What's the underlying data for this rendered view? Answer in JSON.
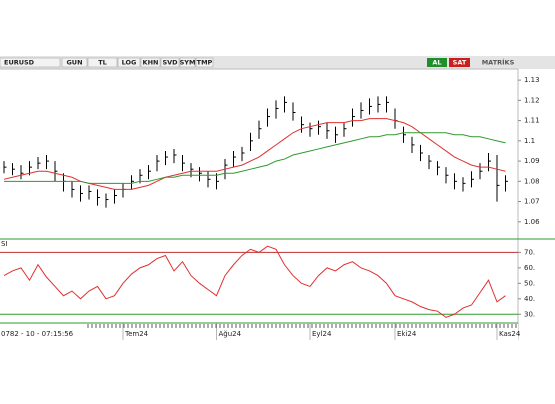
{
  "toolbar": {
    "symbol": "EURUSD",
    "buttons": [
      "GUN",
      "TL",
      "LOG",
      "KHN",
      "SVD",
      "SYM",
      "TMP"
    ],
    "buy": "AL",
    "sell": "SAT",
    "brand": "MATRİKS"
  },
  "timestamp": "0782 - 10 - 07:15:56",
  "chart_data": [
    {
      "type": "ohlc",
      "high": [
        1.09,
        1.089,
        1.088,
        1.09,
        1.092,
        1.093,
        1.09,
        1.084,
        1.08,
        1.078,
        1.078,
        1.076,
        1.074,
        1.076,
        1.079,
        1.083,
        1.086,
        1.088,
        1.093,
        1.095,
        1.096,
        1.093,
        1.089,
        1.087,
        1.085,
        1.084,
        1.091,
        1.095,
        1.097,
        1.104,
        1.11,
        1.116,
        1.12,
        1.122,
        1.119,
        1.112,
        1.109,
        1.11,
        1.109,
        1.107,
        1.109,
        1.116,
        1.119,
        1.121,
        1.122,
        1.122,
        1.116,
        1.107,
        1.102,
        1.098,
        1.093,
        1.09,
        1.087,
        1.084,
        1.082,
        1.085,
        1.089,
        1.094,
        1.093,
        1.083
      ],
      "low": [
        1.084,
        1.083,
        1.081,
        1.083,
        1.086,
        1.086,
        1.08,
        1.075,
        1.072,
        1.07,
        1.071,
        1.068,
        1.067,
        1.069,
        1.072,
        1.076,
        1.079,
        1.081,
        1.085,
        1.088,
        1.089,
        1.085,
        1.082,
        1.08,
        1.077,
        1.076,
        1.081,
        1.087,
        1.09,
        1.095,
        1.101,
        1.107,
        1.111,
        1.114,
        1.11,
        1.104,
        1.102,
        1.103,
        1.101,
        1.099,
        1.102,
        1.107,
        1.111,
        1.113,
        1.114,
        1.114,
        1.106,
        1.099,
        1.094,
        1.09,
        1.086,
        1.083,
        1.079,
        1.076,
        1.075,
        1.077,
        1.081,
        1.085,
        1.07,
        1.075
      ],
      "close": [
        1.087,
        1.086,
        1.084,
        1.087,
        1.089,
        1.09,
        1.085,
        1.08,
        1.076,
        1.074,
        1.075,
        1.072,
        1.071,
        1.073,
        1.076,
        1.08,
        1.083,
        1.085,
        1.09,
        1.092,
        1.093,
        1.089,
        1.086,
        1.084,
        1.081,
        1.08,
        1.088,
        1.092,
        1.094,
        1.1,
        1.106,
        1.112,
        1.116,
        1.119,
        1.114,
        1.108,
        1.106,
        1.107,
        1.105,
        1.103,
        1.106,
        1.112,
        1.115,
        1.117,
        1.118,
        1.119,
        1.11,
        1.103,
        1.098,
        1.094,
        1.09,
        1.087,
        1.083,
        1.08,
        1.079,
        1.081,
        1.085,
        1.09,
        1.078,
        1.08
      ],
      "color": "#000000",
      "series": [
        {
          "color": "#e03030",
          "values": [
            1.081,
            1.082,
            1.083,
            1.084,
            1.085,
            1.085,
            1.084,
            1.083,
            1.082,
            1.08,
            1.079,
            1.078,
            1.077,
            1.076,
            1.076,
            1.076,
            1.077,
            1.078,
            1.08,
            1.082,
            1.083,
            1.084,
            1.085,
            1.085,
            1.085,
            1.085,
            1.086,
            1.087,
            1.088,
            1.09,
            1.092,
            1.095,
            1.098,
            1.101,
            1.104,
            1.106,
            1.107,
            1.108,
            1.109,
            1.109,
            1.109,
            1.11,
            1.11,
            1.111,
            1.111,
            1.111,
            1.11,
            1.109,
            1.107,
            1.104,
            1.101,
            1.098,
            1.095,
            1.092,
            1.09,
            1.088,
            1.087,
            1.087,
            1.086,
            1.085
          ]
        },
        {
          "color": "#2e9a2e",
          "values": [
            1.08,
            1.08,
            1.08,
            1.08,
            1.08,
            1.08,
            1.08,
            1.08,
            1.08,
            1.08,
            1.079,
            1.079,
            1.079,
            1.079,
            1.079,
            1.079,
            1.08,
            1.08,
            1.081,
            1.082,
            1.082,
            1.083,
            1.083,
            1.083,
            1.083,
            1.083,
            1.084,
            1.084,
            1.085,
            1.086,
            1.087,
            1.088,
            1.09,
            1.091,
            1.093,
            1.094,
            1.095,
            1.096,
            1.097,
            1.098,
            1.099,
            1.1,
            1.101,
            1.102,
            1.102,
            1.103,
            1.103,
            1.104,
            1.104,
            1.104,
            1.104,
            1.104,
            1.104,
            1.103,
            1.103,
            1.102,
            1.102,
            1.101,
            1.1,
            1.099
          ]
        }
      ],
      "ylim": [
        1.052,
        1.135
      ],
      "yticks": [
        1.06,
        1.07,
        1.08,
        1.09,
        1.1,
        1.11,
        1.12,
        1.13
      ]
    },
    {
      "type": "line",
      "title": "SI",
      "categories": [
        null,
        null,
        null,
        null,
        null,
        null,
        null,
        null,
        null,
        null,
        null,
        null,
        null,
        null,
        "Tem24",
        null,
        null,
        null,
        null,
        null,
        null,
        null,
        null,
        null,
        null,
        "Ağu24",
        null,
        null,
        null,
        null,
        null,
        null,
        null,
        null,
        null,
        null,
        "Eyl24",
        null,
        null,
        null,
        null,
        null,
        null,
        null,
        null,
        null,
        "Eki24",
        null,
        null,
        null,
        null,
        null,
        null,
        null,
        null,
        null,
        null,
        null,
        "Kas24",
        null
      ],
      "series": [
        {
          "color": "#e03030",
          "values": [
            55,
            58,
            60,
            52,
            62,
            54,
            48,
            42,
            45,
            40,
            45,
            48,
            40,
            42,
            50,
            56,
            60,
            62,
            66,
            68,
            58,
            64,
            55,
            50,
            46,
            42,
            55,
            62,
            68,
            72,
            70,
            74,
            72,
            62,
            55,
            50,
            48,
            55,
            60,
            58,
            62,
            64,
            60,
            58,
            55,
            50,
            42,
            40,
            38,
            35,
            33,
            32,
            28,
            30,
            34,
            36,
            44,
            52,
            38,
            42
          ]
        }
      ],
      "bands": [
        {
          "value": 70,
          "color": "#c03030"
        },
        {
          "value": 30,
          "color": "#2e9a2e"
        }
      ],
      "ylim": [
        25,
        78
      ],
      "yticks": [
        {
          "value": 30,
          "label": "30."
        },
        {
          "value": 40,
          "label": "40."
        },
        {
          "value": 50,
          "label": "50."
        },
        {
          "value": 60,
          "label": "60."
        },
        {
          "value": 70,
          "label": "70."
        }
      ]
    }
  ]
}
